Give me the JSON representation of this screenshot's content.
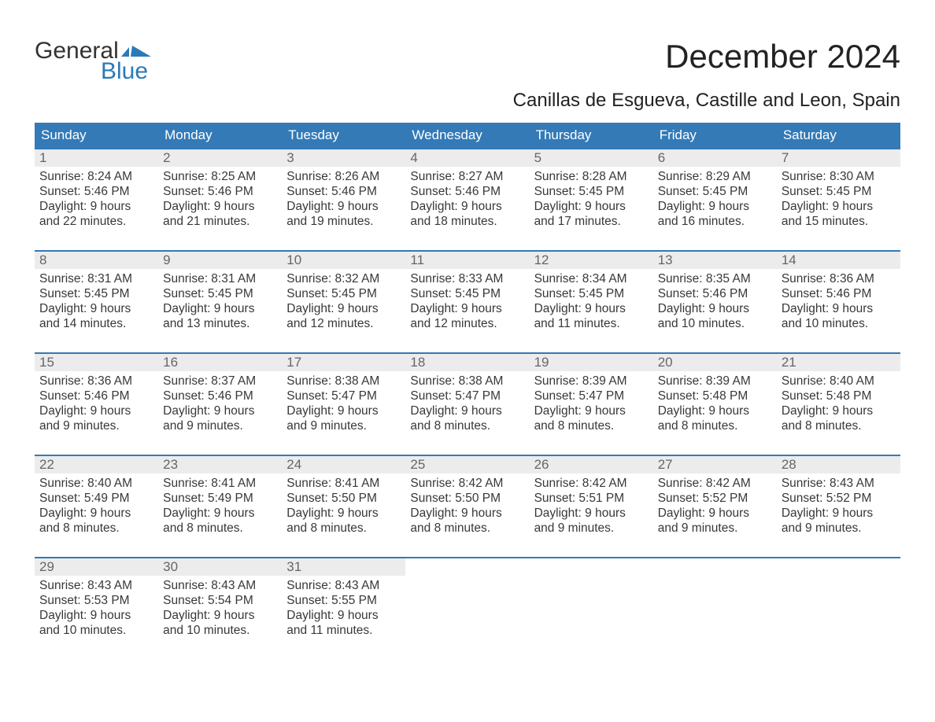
{
  "logo": {
    "word1": "General",
    "word2": "Blue"
  },
  "title": "December 2024",
  "subtitle": "Canillas de Esgueva, Castille and Leon, Spain",
  "colors": {
    "header_bg": "#337ab7",
    "header_text": "#ffffff",
    "week_border": "#337ab7",
    "daynum_bg": "#ececec",
    "daynum_text": "#666666",
    "body_text": "#383838",
    "accent": "#2a7ab9",
    "background": "#ffffff"
  },
  "typography": {
    "title_fontsize": 42,
    "subtitle_fontsize": 24,
    "header_fontsize": 17,
    "daynum_fontsize": 17,
    "body_fontsize": 15.5,
    "font_family": "Arial"
  },
  "layout": {
    "columns": 7,
    "rows": 5
  },
  "day_labels": [
    "Sunday",
    "Monday",
    "Tuesday",
    "Wednesday",
    "Thursday",
    "Friday",
    "Saturday"
  ],
  "weeks": [
    [
      {
        "num": "1",
        "sunrise": "Sunrise: 8:24 AM",
        "sunset": "Sunset: 5:46 PM",
        "day1": "Daylight: 9 hours",
        "day2": "and 22 minutes."
      },
      {
        "num": "2",
        "sunrise": "Sunrise: 8:25 AM",
        "sunset": "Sunset: 5:46 PM",
        "day1": "Daylight: 9 hours",
        "day2": "and 21 minutes."
      },
      {
        "num": "3",
        "sunrise": "Sunrise: 8:26 AM",
        "sunset": "Sunset: 5:46 PM",
        "day1": "Daylight: 9 hours",
        "day2": "and 19 minutes."
      },
      {
        "num": "4",
        "sunrise": "Sunrise: 8:27 AM",
        "sunset": "Sunset: 5:46 PM",
        "day1": "Daylight: 9 hours",
        "day2": "and 18 minutes."
      },
      {
        "num": "5",
        "sunrise": "Sunrise: 8:28 AM",
        "sunset": "Sunset: 5:45 PM",
        "day1": "Daylight: 9 hours",
        "day2": "and 17 minutes."
      },
      {
        "num": "6",
        "sunrise": "Sunrise: 8:29 AM",
        "sunset": "Sunset: 5:45 PM",
        "day1": "Daylight: 9 hours",
        "day2": "and 16 minutes."
      },
      {
        "num": "7",
        "sunrise": "Sunrise: 8:30 AM",
        "sunset": "Sunset: 5:45 PM",
        "day1": "Daylight: 9 hours",
        "day2": "and 15 minutes."
      }
    ],
    [
      {
        "num": "8",
        "sunrise": "Sunrise: 8:31 AM",
        "sunset": "Sunset: 5:45 PM",
        "day1": "Daylight: 9 hours",
        "day2": "and 14 minutes."
      },
      {
        "num": "9",
        "sunrise": "Sunrise: 8:31 AM",
        "sunset": "Sunset: 5:45 PM",
        "day1": "Daylight: 9 hours",
        "day2": "and 13 minutes."
      },
      {
        "num": "10",
        "sunrise": "Sunrise: 8:32 AM",
        "sunset": "Sunset: 5:45 PM",
        "day1": "Daylight: 9 hours",
        "day2": "and 12 minutes."
      },
      {
        "num": "11",
        "sunrise": "Sunrise: 8:33 AM",
        "sunset": "Sunset: 5:45 PM",
        "day1": "Daylight: 9 hours",
        "day2": "and 12 minutes."
      },
      {
        "num": "12",
        "sunrise": "Sunrise: 8:34 AM",
        "sunset": "Sunset: 5:45 PM",
        "day1": "Daylight: 9 hours",
        "day2": "and 11 minutes."
      },
      {
        "num": "13",
        "sunrise": "Sunrise: 8:35 AM",
        "sunset": "Sunset: 5:46 PM",
        "day1": "Daylight: 9 hours",
        "day2": "and 10 minutes."
      },
      {
        "num": "14",
        "sunrise": "Sunrise: 8:36 AM",
        "sunset": "Sunset: 5:46 PM",
        "day1": "Daylight: 9 hours",
        "day2": "and 10 minutes."
      }
    ],
    [
      {
        "num": "15",
        "sunrise": "Sunrise: 8:36 AM",
        "sunset": "Sunset: 5:46 PM",
        "day1": "Daylight: 9 hours",
        "day2": "and 9 minutes."
      },
      {
        "num": "16",
        "sunrise": "Sunrise: 8:37 AM",
        "sunset": "Sunset: 5:46 PM",
        "day1": "Daylight: 9 hours",
        "day2": "and 9 minutes."
      },
      {
        "num": "17",
        "sunrise": "Sunrise: 8:38 AM",
        "sunset": "Sunset: 5:47 PM",
        "day1": "Daylight: 9 hours",
        "day2": "and 9 minutes."
      },
      {
        "num": "18",
        "sunrise": "Sunrise: 8:38 AM",
        "sunset": "Sunset: 5:47 PM",
        "day1": "Daylight: 9 hours",
        "day2": "and 8 minutes."
      },
      {
        "num": "19",
        "sunrise": "Sunrise: 8:39 AM",
        "sunset": "Sunset: 5:47 PM",
        "day1": "Daylight: 9 hours",
        "day2": "and 8 minutes."
      },
      {
        "num": "20",
        "sunrise": "Sunrise: 8:39 AM",
        "sunset": "Sunset: 5:48 PM",
        "day1": "Daylight: 9 hours",
        "day2": "and 8 minutes."
      },
      {
        "num": "21",
        "sunrise": "Sunrise: 8:40 AM",
        "sunset": "Sunset: 5:48 PM",
        "day1": "Daylight: 9 hours",
        "day2": "and 8 minutes."
      }
    ],
    [
      {
        "num": "22",
        "sunrise": "Sunrise: 8:40 AM",
        "sunset": "Sunset: 5:49 PM",
        "day1": "Daylight: 9 hours",
        "day2": "and 8 minutes."
      },
      {
        "num": "23",
        "sunrise": "Sunrise: 8:41 AM",
        "sunset": "Sunset: 5:49 PM",
        "day1": "Daylight: 9 hours",
        "day2": "and 8 minutes."
      },
      {
        "num": "24",
        "sunrise": "Sunrise: 8:41 AM",
        "sunset": "Sunset: 5:50 PM",
        "day1": "Daylight: 9 hours",
        "day2": "and 8 minutes."
      },
      {
        "num": "25",
        "sunrise": "Sunrise: 8:42 AM",
        "sunset": "Sunset: 5:50 PM",
        "day1": "Daylight: 9 hours",
        "day2": "and 8 minutes."
      },
      {
        "num": "26",
        "sunrise": "Sunrise: 8:42 AM",
        "sunset": "Sunset: 5:51 PM",
        "day1": "Daylight: 9 hours",
        "day2": "and 9 minutes."
      },
      {
        "num": "27",
        "sunrise": "Sunrise: 8:42 AM",
        "sunset": "Sunset: 5:52 PM",
        "day1": "Daylight: 9 hours",
        "day2": "and 9 minutes."
      },
      {
        "num": "28",
        "sunrise": "Sunrise: 8:43 AM",
        "sunset": "Sunset: 5:52 PM",
        "day1": "Daylight: 9 hours",
        "day2": "and 9 minutes."
      }
    ],
    [
      {
        "num": "29",
        "sunrise": "Sunrise: 8:43 AM",
        "sunset": "Sunset: 5:53 PM",
        "day1": "Daylight: 9 hours",
        "day2": "and 10 minutes."
      },
      {
        "num": "30",
        "sunrise": "Sunrise: 8:43 AM",
        "sunset": "Sunset: 5:54 PM",
        "day1": "Daylight: 9 hours",
        "day2": "and 10 minutes."
      },
      {
        "num": "31",
        "sunrise": "Sunrise: 8:43 AM",
        "sunset": "Sunset: 5:55 PM",
        "day1": "Daylight: 9 hours",
        "day2": "and 11 minutes."
      },
      {
        "empty": true
      },
      {
        "empty": true
      },
      {
        "empty": true
      },
      {
        "empty": true
      }
    ]
  ]
}
